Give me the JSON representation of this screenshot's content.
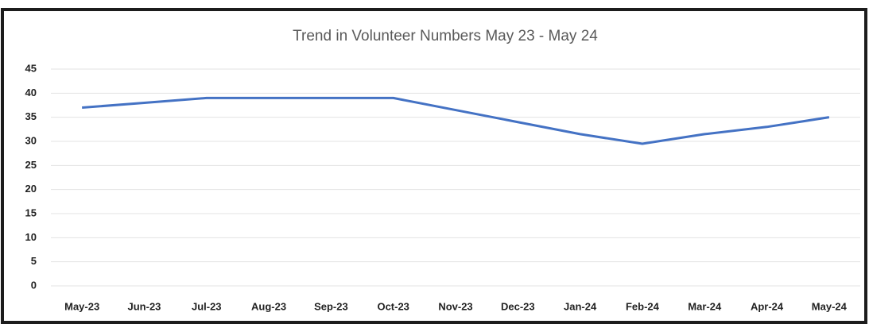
{
  "chart_data": {
    "type": "line",
    "title": "Trend in Volunteer Numbers May 23 - May 24",
    "categories": [
      "May-23",
      "Jun-23",
      "Jul-23",
      "Aug-23",
      "Sep-23",
      "Oct-23",
      "Nov-23",
      "Dec-23",
      "Jan-24",
      "Feb-24",
      "Mar-24",
      "Apr-24",
      "May-24"
    ],
    "series": [
      {
        "name": "Volunteers",
        "color": "#4472c4",
        "values": [
          37,
          38,
          39,
          39,
          39,
          39,
          36.5,
          34,
          31.5,
          29.5,
          31.5,
          33,
          35
        ]
      }
    ],
    "ylim": [
      0,
      45
    ],
    "yticks": [
      0,
      5,
      10,
      15,
      20,
      25,
      30,
      35,
      40,
      45
    ],
    "grid": true
  }
}
